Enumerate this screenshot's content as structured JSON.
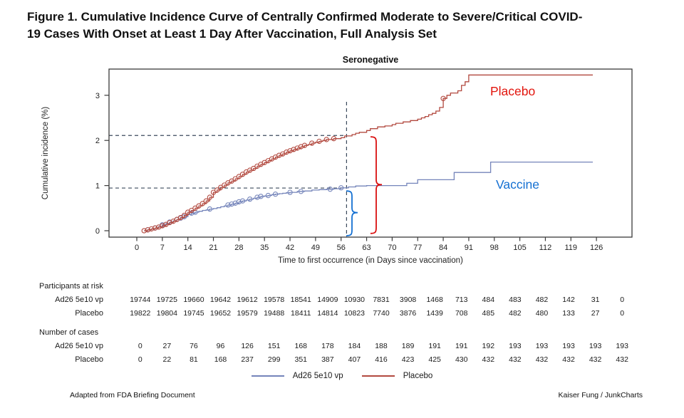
{
  "figure": {
    "title_line1": "Figure 1. Cumulative Incidence Curve of Centrally Confirmed Moderate to Severe/Critical COVID-",
    "title_line2": "19 Cases With Onset at Least 1 Day After Vaccination, Full Analysis Set",
    "footer_left": "Adapted from FDA Briefing Document",
    "footer_right": "Kaiser Fung / JunkCharts"
  },
  "chart_data": {
    "type": "line",
    "title": "Seronegative",
    "xlabel": "Time to first occurrence (in Days since vaccination)",
    "ylabel": "Cumulative incidence (%)",
    "xlim": [
      0,
      126
    ],
    "ylim": [
      0,
      3.5
    ],
    "xticks": [
      0,
      7,
      14,
      21,
      28,
      35,
      42,
      49,
      56,
      63,
      70,
      77,
      84,
      91,
      98,
      105,
      112,
      119,
      126
    ],
    "yticks": [
      0,
      1,
      2,
      3
    ],
    "grid": false,
    "colors": {
      "vaccine_curve": "#7484ba",
      "placebo_curve": "#b2493f",
      "vaccine_label": "#1470d2",
      "placebo_label": "#e2150d",
      "dashed_guide": "#3b4a5c",
      "red_brace": "#d90f0f",
      "blue_brace": "#1470d2",
      "axis": "#3a3a3a"
    },
    "series": [
      {
        "name": "Ad26 5e10 vp",
        "annotation_label": "Vaccine",
        "points": [
          [
            2,
            0
          ],
          [
            3,
            0.02
          ],
          [
            4,
            0.04
          ],
          [
            5,
            0.06
          ],
          [
            6,
            0.09
          ],
          [
            7,
            0.13
          ],
          [
            8,
            0.16
          ],
          [
            9,
            0.19
          ],
          [
            10,
            0.22
          ],
          [
            11,
            0.25
          ],
          [
            12,
            0.28
          ],
          [
            13,
            0.31
          ],
          [
            14,
            0.36
          ],
          [
            15,
            0.39
          ],
          [
            16,
            0.41
          ],
          [
            17,
            0.43
          ],
          [
            18,
            0.45
          ],
          [
            19,
            0.46
          ],
          [
            20,
            0.48
          ],
          [
            21,
            0.49
          ],
          [
            22,
            0.51
          ],
          [
            23,
            0.53
          ],
          [
            24,
            0.55
          ],
          [
            25,
            0.57
          ],
          [
            26,
            0.59
          ],
          [
            27,
            0.61
          ],
          [
            28,
            0.64
          ],
          [
            29,
            0.66
          ],
          [
            30,
            0.68
          ],
          [
            31,
            0.7
          ],
          [
            32,
            0.72
          ],
          [
            33,
            0.74
          ],
          [
            34,
            0.76
          ],
          [
            35,
            0.77
          ],
          [
            36,
            0.78
          ],
          [
            37,
            0.8
          ],
          [
            38,
            0.81
          ],
          [
            39,
            0.82
          ],
          [
            40,
            0.83
          ],
          [
            41,
            0.84
          ],
          [
            42,
            0.85
          ],
          [
            44,
            0.87
          ],
          [
            46,
            0.88
          ],
          [
            48,
            0.9
          ],
          [
            50,
            0.91
          ],
          [
            52,
            0.92
          ],
          [
            54,
            0.93
          ],
          [
            56,
            0.95
          ],
          [
            58,
            0.97
          ],
          [
            60,
            0.99
          ],
          [
            63,
            1.0
          ],
          [
            74,
            1.05
          ],
          [
            77,
            1.13
          ],
          [
            87,
            1.29
          ],
          [
            97,
            1.52
          ],
          [
            125,
            1.52
          ]
        ],
        "marker_days": [
          3,
          5,
          7,
          9,
          11,
          12,
          13,
          15,
          16,
          20,
          25,
          26,
          27,
          28,
          29,
          31,
          33,
          34,
          36,
          38,
          42,
          45,
          53,
          56
        ]
      },
      {
        "name": "Placebo",
        "annotation_label": "Placebo",
        "points": [
          [
            2,
            0
          ],
          [
            3,
            0.02
          ],
          [
            4,
            0.04
          ],
          [
            5,
            0.06
          ],
          [
            6,
            0.08
          ],
          [
            7,
            0.11
          ],
          [
            8,
            0.14
          ],
          [
            9,
            0.18
          ],
          [
            10,
            0.21
          ],
          [
            11,
            0.25
          ],
          [
            12,
            0.29
          ],
          [
            13,
            0.34
          ],
          [
            14,
            0.41
          ],
          [
            15,
            0.45
          ],
          [
            16,
            0.5
          ],
          [
            17,
            0.55
          ],
          [
            18,
            0.6
          ],
          [
            19,
            0.66
          ],
          [
            20,
            0.74
          ],
          [
            21,
            0.85
          ],
          [
            22,
            0.9
          ],
          [
            23,
            0.96
          ],
          [
            24,
            1.01
          ],
          [
            25,
            1.06
          ],
          [
            26,
            1.1
          ],
          [
            27,
            1.15
          ],
          [
            28,
            1.2
          ],
          [
            29,
            1.25
          ],
          [
            30,
            1.3
          ],
          [
            31,
            1.34
          ],
          [
            32,
            1.38
          ],
          [
            33,
            1.43
          ],
          [
            34,
            1.47
          ],
          [
            35,
            1.51
          ],
          [
            36,
            1.55
          ],
          [
            37,
            1.59
          ],
          [
            38,
            1.63
          ],
          [
            39,
            1.67
          ],
          [
            40,
            1.7
          ],
          [
            41,
            1.74
          ],
          [
            42,
            1.77
          ],
          [
            43,
            1.8
          ],
          [
            44,
            1.83
          ],
          [
            45,
            1.86
          ],
          [
            46,
            1.89
          ],
          [
            47,
            1.91
          ],
          [
            48,
            1.94
          ],
          [
            49,
            1.96
          ],
          [
            50,
            1.98
          ],
          [
            51,
            2.0
          ],
          [
            52,
            2.02
          ],
          [
            54,
            2.04
          ],
          [
            56,
            2.06
          ],
          [
            57,
            2.1
          ],
          [
            59,
            2.13
          ],
          [
            60,
            2.16
          ],
          [
            61,
            2.18
          ],
          [
            63,
            2.22
          ],
          [
            64,
            2.26
          ],
          [
            66,
            2.3
          ],
          [
            68,
            2.32
          ],
          [
            70,
            2.35
          ],
          [
            71,
            2.38
          ],
          [
            73,
            2.41
          ],
          [
            75,
            2.44
          ],
          [
            77,
            2.47
          ],
          [
            78,
            2.5
          ],
          [
            79,
            2.53
          ],
          [
            80,
            2.57
          ],
          [
            81,
            2.6
          ],
          [
            82,
            2.65
          ],
          [
            83,
            2.73
          ],
          [
            84,
            2.93
          ],
          [
            85,
            3.0
          ],
          [
            86,
            3.05
          ],
          [
            88,
            3.1
          ],
          [
            89,
            3.22
          ],
          [
            90,
            3.3
          ],
          [
            91,
            3.45
          ],
          [
            125,
            3.45
          ]
        ],
        "marker_days": [
          2,
          3,
          4,
          5,
          6,
          7,
          8,
          9,
          10,
          11,
          12,
          13,
          14,
          15,
          16,
          17,
          18,
          19,
          20,
          21,
          22,
          23,
          24,
          25,
          26,
          27,
          28,
          29,
          30,
          31,
          32,
          33,
          34,
          35,
          36,
          37,
          38,
          39,
          40,
          41,
          42,
          43,
          44,
          45,
          46,
          48,
          50,
          52,
          54,
          84
        ]
      }
    ],
    "annotations": {
      "vline_day": 57.5,
      "hline_pcts": [
        2.11,
        0.945
      ],
      "red_brace": {
        "top_pct": 2.08,
        "bottom_pct": -0.06,
        "notch_pct": 1.02
      },
      "blue_brace": {
        "top_pct": 0.88,
        "bottom_pct": -0.11,
        "notch_pct": 0.4
      }
    },
    "legend": [
      {
        "label": "Ad26 5e10 vp",
        "color": "#7484ba"
      },
      {
        "label": "Placebo",
        "color": "#b2493f"
      }
    ],
    "tables": [
      {
        "title": "Participants at risk",
        "rows": [
          {
            "label": "Ad26 5e10 vp",
            "values": [
              "19744",
              "19725",
              "19660",
              "19642",
              "19612",
              "19578",
              "18541",
              "14909",
              "10930",
              "7831",
              "3908",
              "1468",
              "713",
              "484",
              "483",
              "482",
              "142",
              "31",
              "0"
            ]
          },
          {
            "label": "Placebo",
            "values": [
              "19822",
              "19804",
              "19745",
              "19652",
              "19579",
              "19488",
              "18411",
              "14814",
              "10823",
              "7740",
              "3876",
              "1439",
              "708",
              "485",
              "482",
              "480",
              "133",
              "27",
              "0"
            ]
          }
        ]
      },
      {
        "title": "Number of cases",
        "rows": [
          {
            "label": "Ad26 5e10 vp",
            "values": [
              "0",
              "27",
              "76",
              "96",
              "126",
              "151",
              "168",
              "178",
              "184",
              "188",
              "189",
              "191",
              "191",
              "192",
              "193",
              "193",
              "193",
              "193",
              "193"
            ]
          },
          {
            "label": "Placebo",
            "values": [
              "0",
              "22",
              "81",
              "168",
              "237",
              "299",
              "351",
              "387",
              "407",
              "416",
              "423",
              "425",
              "430",
              "432",
              "432",
              "432",
              "432",
              "432",
              "432"
            ]
          }
        ]
      }
    ]
  }
}
